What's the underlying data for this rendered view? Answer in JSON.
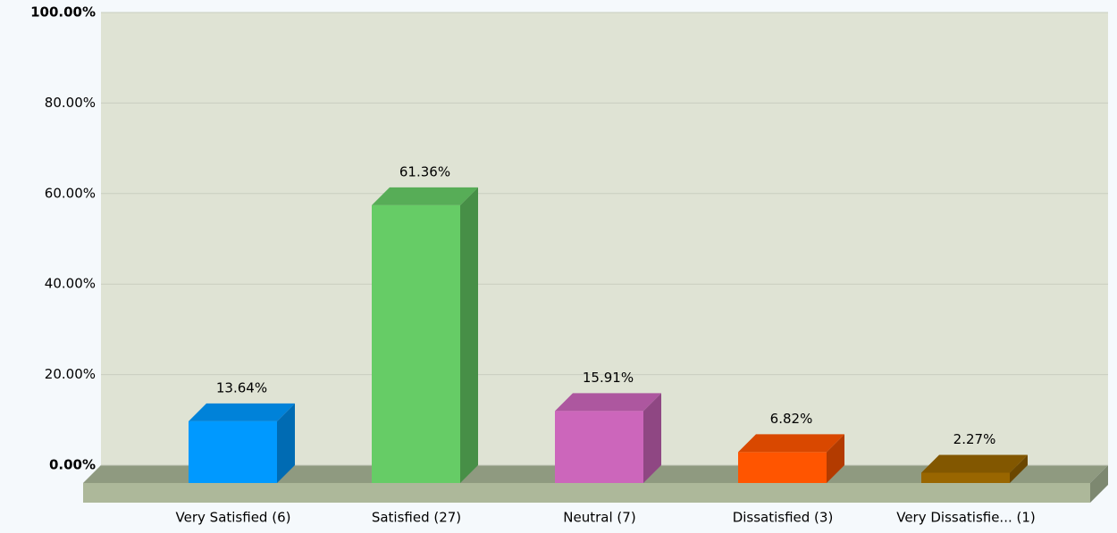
{
  "chart_data": {
    "type": "bar3d",
    "categories": [
      "Very Satisfied (6)",
      "Satisfied (27)",
      "Neutral (7)",
      "Dissatisfied (3)",
      "Very Dissatisfie... (1)"
    ],
    "values": [
      13.64,
      61.36,
      15.91,
      6.82,
      2.27
    ],
    "value_labels": [
      "13.64%",
      "61.36%",
      "15.91%",
      "6.82%",
      "2.27%"
    ],
    "colors": [
      "#0099ff",
      "#66cc66",
      "#cc66bb",
      "#ff5500",
      "#996600"
    ],
    "ylim": [
      0,
      100
    ],
    "yticks": [
      {
        "value": 0,
        "label": "0.00%"
      },
      {
        "value": 20,
        "label": "20.00%"
      },
      {
        "value": 40,
        "label": "40.00%"
      },
      {
        "value": 60,
        "label": "60.00%"
      },
      {
        "value": 80,
        "label": "80.00%"
      },
      {
        "value": 100,
        "label": "100.00%"
      }
    ],
    "grid": true
  }
}
